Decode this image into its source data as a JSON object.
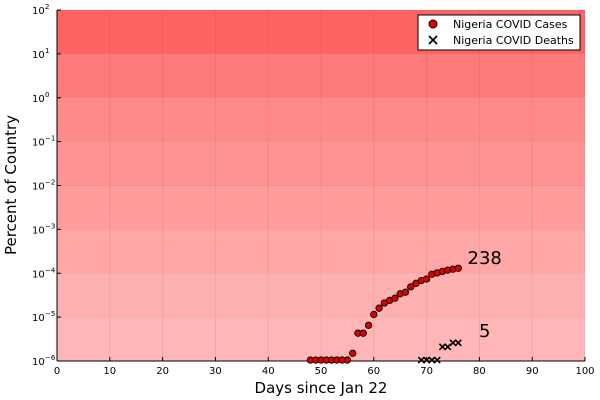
{
  "chart_data": {
    "type": "scatter",
    "title": "",
    "xlabel": "Days since Jan 22",
    "ylabel": "Percent of Country",
    "xlim": [
      0,
      100
    ],
    "ylim": [
      1e-06,
      100
    ],
    "yscale": "log",
    "grid": true,
    "legend_position": "top-right",
    "x_ticks": [
      0,
      10,
      20,
      30,
      40,
      50,
      60,
      70,
      80,
      90,
      100
    ],
    "y_ticks": [
      {
        "value": 1e-06,
        "base": "10",
        "exp": "−6"
      },
      {
        "value": 1e-05,
        "base": "10",
        "exp": "−5"
      },
      {
        "value": 0.0001,
        "base": "10",
        "exp": "−4"
      },
      {
        "value": 0.001,
        "base": "10",
        "exp": "−3"
      },
      {
        "value": 0.01,
        "base": "10",
        "exp": "−2"
      },
      {
        "value": 0.1,
        "base": "10",
        "exp": "−1"
      },
      {
        "value": 1,
        "base": "10",
        "exp": "0"
      },
      {
        "value": 10,
        "base": "10",
        "exp": "1"
      },
      {
        "value": 100,
        "base": "10",
        "exp": "2"
      }
    ],
    "background_bands": [
      {
        "from": 1e-06,
        "to": 1e-05,
        "color": "#ffb6b6"
      },
      {
        "from": 1e-05,
        "to": 0.0001,
        "color": "#ffb1b1"
      },
      {
        "from": 0.0001,
        "to": 0.001,
        "color": "#ffa6a6"
      },
      {
        "from": 0.001,
        "to": 0.01,
        "color": "#ff9c9c"
      },
      {
        "from": 0.01,
        "to": 0.1,
        "color": "#ff9292"
      },
      {
        "from": 0.1,
        "to": 1,
        "color": "#ff8a8a"
      },
      {
        "from": 1,
        "to": 10,
        "color": "#ff7a7a"
      },
      {
        "from": 10,
        "to": 100,
        "color": "#ff6464"
      }
    ],
    "series": [
      {
        "name": "Nigeria COVID Cases",
        "marker": "circle",
        "color": "#dd0000",
        "x": [
          48,
          49,
          50,
          51,
          52,
          53,
          54,
          55,
          56,
          57,
          58,
          59,
          60,
          61,
          62,
          63,
          64,
          65,
          66,
          67,
          68,
          69,
          70,
          71,
          72,
          73,
          74,
          75,
          76
        ],
        "y": [
          1.05e-06,
          1.05e-06,
          1.05e-06,
          1.05e-06,
          1.05e-06,
          1.05e-06,
          1.05e-06,
          1.05e-06,
          1.5e-06,
          4.3e-06,
          4.3e-06,
          6.5e-06,
          1.15e-05,
          1.6e-05,
          2.1e-05,
          2.4e-05,
          2.7e-05,
          3.4e-05,
          3.7e-05,
          4.9e-05,
          5.9e-05,
          6.8e-05,
          7.4e-05,
          9.5e-05,
          0.000102,
          0.00011,
          0.000118,
          0.000124,
          0.00013
        ]
      },
      {
        "name": "Nigeria COVID Deaths",
        "marker": "x",
        "color": "#000000",
        "x": [
          69,
          70,
          71,
          72,
          73,
          74,
          75,
          76
        ],
        "y": [
          1.05e-06,
          1.05e-06,
          1.05e-06,
          1.05e-06,
          2.1e-06,
          2.1e-06,
          2.6e-06,
          2.6e-06
        ]
      }
    ],
    "annotations": [
      {
        "text": "238",
        "x": 81,
        "y": 0.00022
      },
      {
        "text": "5",
        "x": 81,
        "y": 4.8e-06
      }
    ]
  }
}
